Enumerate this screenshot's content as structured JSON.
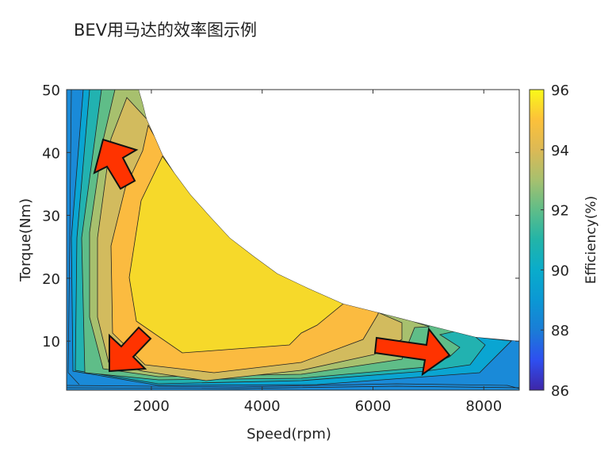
{
  "chart_data": {
    "type": "contourf",
    "title": "BEV用马达的效率图示例",
    "xlabel": "Speed(rpm)",
    "ylabel": "Torque(Nm)",
    "xlim": [
      470,
      8640
    ],
    "ylim": [
      2.2,
      50
    ],
    "xticks": [
      2000,
      4000,
      6000,
      8000
    ],
    "yticks": [
      10,
      20,
      30,
      40,
      50
    ],
    "colorbar": {
      "label": "Efficiency(%)",
      "limits": [
        86,
        96
      ],
      "ticks": [
        86,
        88,
        90,
        92,
        94,
        96
      ]
    },
    "levels": [
      {
        "min": 88,
        "max": 89,
        "color": "#1a8ad8"
      },
      {
        "min": 89,
        "max": 90,
        "color": "#0aa5d2"
      },
      {
        "min": 90,
        "max": 91,
        "color": "#22b2b0"
      },
      {
        "min": 91,
        "max": 92,
        "color": "#5fbd88"
      },
      {
        "min": 92,
        "max": 93,
        "color": "#a7c06e"
      },
      {
        "min": 93,
        "max": 94,
        "color": "#d2bb5e"
      },
      {
        "min": 94,
        "max": 95,
        "color": "#fbbb40"
      },
      {
        "min": 95,
        "max": 96,
        "color": "#f6d92a"
      }
    ],
    "annotations": [
      {
        "type": "arrow",
        "direction": "up-left",
        "near": "high torque, low speed"
      },
      {
        "type": "arrow",
        "direction": "down-left",
        "near": "low torque, low speed"
      },
      {
        "type": "arrow",
        "direction": "right",
        "near": "low torque, high speed"
      }
    ],
    "arrow_color": "#ff3300"
  }
}
